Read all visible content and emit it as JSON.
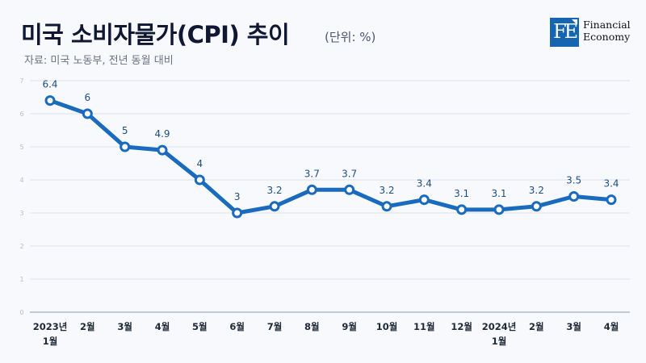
{
  "header": {
    "title": "미국 소비자물가(CPI) 추이",
    "unit": "(단위: %)",
    "subtitle": "자료: 미국 노동부, 전년 동월 대비"
  },
  "logo": {
    "mark": "FE",
    "line1": "Financial",
    "line2": "Economy",
    "color": "#1565b0"
  },
  "chart_data": {
    "type": "line",
    "title": "미국 소비자물가(CPI) 추이",
    "xlabel": "",
    "ylabel": "",
    "ylim": [
      0,
      7
    ],
    "yticks": [
      "0",
      "1",
      "2",
      "3",
      "4",
      "5",
      "6",
      "7"
    ],
    "grid": true,
    "categories": [
      [
        "2023년",
        "1월"
      ],
      [
        "2월"
      ],
      [
        "3월"
      ],
      [
        "4월"
      ],
      [
        "5월"
      ],
      [
        "6월"
      ],
      [
        "7월"
      ],
      [
        "8월"
      ],
      [
        "9월"
      ],
      [
        "10월"
      ],
      [
        "11월"
      ],
      [
        "12월"
      ],
      [
        "2024년",
        "1월"
      ],
      [
        "2월"
      ],
      [
        "3월"
      ],
      [
        "4월"
      ]
    ],
    "series": [
      {
        "name": "CPI",
        "color": "#1a6bbd",
        "values": [
          6.4,
          6,
          5,
          4.9,
          4,
          3,
          3.2,
          3.7,
          3.7,
          3.2,
          3.4,
          3.1,
          3.1,
          3.2,
          3.5,
          3.4
        ],
        "labels": [
          "6.4",
          "6",
          "5",
          "4.9",
          "4",
          "3",
          "3.2",
          "3.7",
          "3.7",
          "3.2",
          "3.4",
          "3.1",
          "3.1",
          "3.2",
          "3.5",
          "3.4"
        ]
      }
    ]
  }
}
